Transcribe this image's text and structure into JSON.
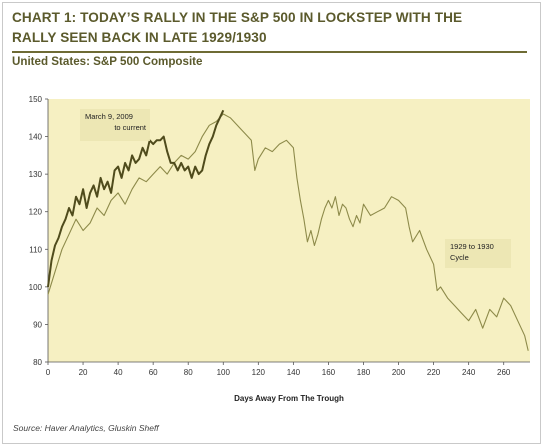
{
  "header": {
    "title_line1": "CHART 1: TODAY’S RALLY IN THE S&P 500 IN LOCKSTEP WITH THE",
    "title_line2": "RALLY SEEN BACK IN LATE 1929/1930",
    "subtitle": "United States: S&P 500 Composite"
  },
  "footer": {
    "source": "Source: Haver Analytics, Gluskin Sheff"
  },
  "colors": {
    "plot_bg": "#f6f0c2",
    "title": "#5b5a2c",
    "series_2009": "#4f4b1c",
    "series_1929": "#8d8a4a"
  },
  "chart_data": {
    "type": "line",
    "title": "CHART 1: TODAY’S RALLY IN THE S&P 500 IN LOCKSTEP WITH THE RALLY SEEN BACK IN LATE 1929/1930",
    "subtitle": "United States: S&P 500 Composite",
    "xlabel": "Days Away From The Trough",
    "ylabel": "",
    "xlim": [
      0,
      275
    ],
    "ylim": [
      80,
      150
    ],
    "xticks": [
      0,
      20,
      40,
      60,
      80,
      100,
      120,
      140,
      160,
      180,
      200,
      220,
      240,
      260
    ],
    "yticks": [
      80,
      90,
      100,
      110,
      120,
      130,
      140,
      150
    ],
    "grid": false,
    "annotations": [
      {
        "text": "March 9, 2009 to current",
        "lines": [
          "March 9, 2009",
          "to current"
        ],
        "series": "2009"
      },
      {
        "text": "1929 to 1930 Cycle",
        "lines": [
          "1929 to 1930",
          "Cycle"
        ],
        "series": "1929"
      }
    ],
    "series": [
      {
        "key": "2009",
        "x": [
          0,
          2,
          4,
          6,
          8,
          10,
          12,
          14,
          16,
          18,
          20,
          22,
          24,
          26,
          28,
          30,
          32,
          34,
          36,
          38,
          40,
          42,
          44,
          46,
          48,
          50,
          52,
          54,
          56,
          58,
          60,
          62,
          64,
          66,
          68,
          70,
          72,
          74,
          76,
          78,
          80,
          82,
          84,
          86,
          88,
          90,
          92,
          94,
          96,
          98,
          100
        ],
        "values": [
          100,
          107,
          111,
          113,
          116,
          118,
          121,
          119,
          124,
          122,
          126,
          121,
          125,
          127,
          124,
          129,
          126,
          128,
          125,
          131,
          132,
          129,
          133,
          131,
          135,
          133,
          134,
          137,
          135,
          139,
          138,
          139,
          139,
          140,
          136,
          133,
          133,
          131,
          133,
          131,
          132,
          129,
          132,
          130,
          131,
          135,
          138,
          140,
          143,
          145,
          147
        ]
      },
      {
        "key": "1929",
        "x": [
          0,
          4,
          8,
          12,
          16,
          20,
          24,
          28,
          32,
          36,
          40,
          44,
          48,
          52,
          56,
          60,
          64,
          68,
          72,
          76,
          80,
          84,
          88,
          92,
          96,
          100,
          104,
          108,
          112,
          116,
          118,
          120,
          124,
          128,
          132,
          136,
          140,
          142,
          144,
          146,
          148,
          150,
          152,
          154,
          156,
          158,
          160,
          162,
          164,
          166,
          168,
          170,
          172,
          174,
          176,
          178,
          180,
          184,
          188,
          192,
          196,
          200,
          204,
          206,
          208,
          212,
          216,
          220,
          222,
          224,
          228,
          232,
          236,
          240,
          244,
          248,
          252,
          256,
          260,
          264,
          268,
          272,
          274
        ],
        "values": [
          98,
          104,
          110,
          114,
          118,
          115,
          117,
          121,
          119,
          123,
          125,
          122,
          126,
          129,
          128,
          130,
          132,
          130,
          133,
          135,
          134,
          136,
          140,
          143,
          144,
          146,
          145,
          143,
          141,
          139,
          131,
          134,
          137,
          136,
          138,
          139,
          137,
          129,
          123,
          118,
          112,
          115,
          111,
          114,
          118,
          121,
          123,
          121,
          124,
          119,
          122,
          121,
          118,
          116,
          119,
          117,
          122,
          119,
          120,
          121,
          124,
          123,
          121,
          116,
          112,
          115,
          110,
          106,
          99,
          100,
          97,
          95,
          93,
          91,
          94,
          89,
          94,
          92,
          97,
          95,
          91,
          87,
          83
        ]
      }
    ]
  }
}
